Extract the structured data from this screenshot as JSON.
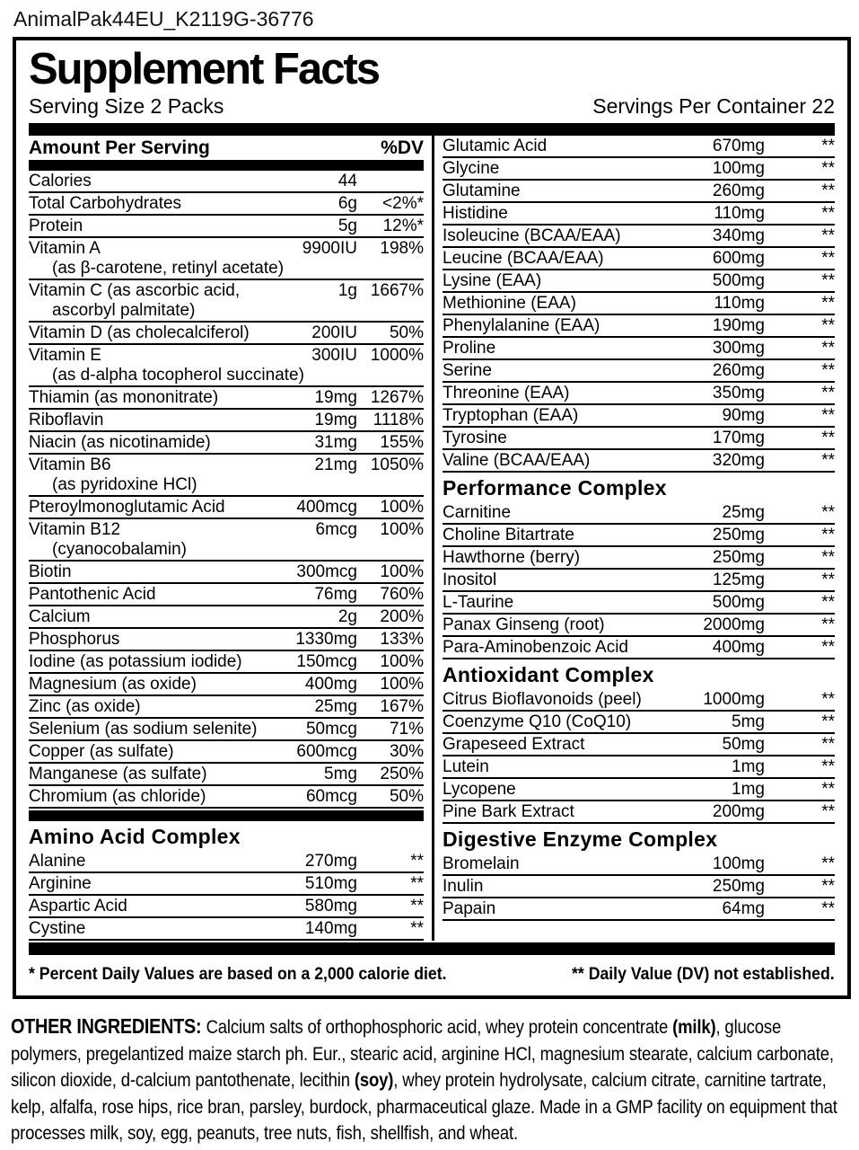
{
  "colors": {
    "ink": "#000000",
    "paper": "#ffffff"
  },
  "page": {
    "file_label": "AnimalPak44EU_K2119G-36776"
  },
  "supplement_panel": {
    "title": "Supplement Facts",
    "serving_size": "Serving Size 2 Packs",
    "servings_per_container": "Servings Per Container 22",
    "columns": {
      "left": {
        "header_amount": "Amount Per Serving",
        "header_dv": "%DV",
        "rows": [
          {
            "name": "Calories",
            "amount": "44",
            "dv": ""
          },
          {
            "name": "Total Carbohydrates",
            "amount": "6g",
            "dv": "<2%*"
          },
          {
            "name": "Protein",
            "amount": "5g",
            "dv": "12%*"
          },
          {
            "name": "Vitamin A",
            "sub": "(as β-carotene, retinyl acetate)",
            "amount": "9900IU",
            "dv": "198%"
          },
          {
            "name": "Vitamin C (as ascorbic acid,",
            "sub": "ascorbyl palmitate)",
            "amount": "1g",
            "dv": "1667%"
          },
          {
            "name": "Vitamin D (as cholecalciferol)",
            "amount": "200IU",
            "dv": "50%"
          },
          {
            "name": "Vitamin E",
            "sub": "(as d-alpha tocopherol succinate)",
            "amount": "300IU",
            "dv": "1000%"
          },
          {
            "name": "Thiamin (as mononitrate)",
            "amount": "19mg",
            "dv": "1267%"
          },
          {
            "name": "Riboflavin",
            "amount": "19mg",
            "dv": "1118%"
          },
          {
            "name": "Niacin (as nicotinamide)",
            "amount": "31mg",
            "dv": "155%"
          },
          {
            "name": "Vitamin B6",
            "sub": "(as pyridoxine HCl)",
            "amount": "21mg",
            "dv": "1050%"
          },
          {
            "name": "Pteroylmonoglutamic Acid",
            "amount": "400mcg",
            "dv": "100%"
          },
          {
            "name": "Vitamin B12",
            "sub": "(cyanocobalamin)",
            "amount": "6mcg",
            "dv": "100%"
          },
          {
            "name": "Biotin",
            "amount": "300mcg",
            "dv": "100%"
          },
          {
            "name": "Pantothenic Acid",
            "amount": "76mg",
            "dv": "760%"
          },
          {
            "name": "Calcium",
            "amount": "2g",
            "dv": "200%"
          },
          {
            "name": "Phosphorus",
            "amount": "1330mg",
            "dv": "133%"
          },
          {
            "name": "Iodine (as potassium iodide)",
            "amount": "150mcg",
            "dv": "100%"
          },
          {
            "name": "Magnesium (as oxide)",
            "amount": "400mg",
            "dv": "100%"
          },
          {
            "name": "Zinc (as oxide)",
            "amount": "25mg",
            "dv": "167%"
          },
          {
            "name": "Selenium (as sodium selenite)",
            "amount": "50mcg",
            "dv": "71%"
          },
          {
            "name": "Copper (as sulfate)",
            "amount": "600mcg",
            "dv": "30%"
          },
          {
            "name": "Manganese (as sulfate)",
            "amount": "5mg",
            "dv": "250%"
          },
          {
            "name": "Chromium (as chloride)",
            "amount": "60mcg",
            "dv": "50%"
          }
        ],
        "amino_section": {
          "header": "Amino Acid Complex",
          "rows": [
            {
              "name": "Alanine",
              "amount": "270mg",
              "dv": "**"
            },
            {
              "name": "Arginine",
              "amount": "510mg",
              "dv": "**"
            },
            {
              "name": "Aspartic Acid",
              "amount": "580mg",
              "dv": "**"
            },
            {
              "name": "Cystine",
              "amount": "140mg",
              "dv": "**"
            }
          ]
        }
      },
      "right": {
        "amino_rows": [
          {
            "name": "Glutamic Acid",
            "amount": "670mg",
            "dv": "**"
          },
          {
            "name": "Glycine",
            "amount": "100mg",
            "dv": "**"
          },
          {
            "name": "Glutamine",
            "amount": "260mg",
            "dv": "**"
          },
          {
            "name": "Histidine",
            "amount": "110mg",
            "dv": "**"
          },
          {
            "name": "Isoleucine (BCAA/EAA)",
            "amount": "340mg",
            "dv": "**"
          },
          {
            "name": "Leucine (BCAA/EAA)",
            "amount": "600mg",
            "dv": "**"
          },
          {
            "name": "Lysine (EAA)",
            "amount": "500mg",
            "dv": "**"
          },
          {
            "name": "Methionine (EAA)",
            "amount": "110mg",
            "dv": "**"
          },
          {
            "name": "Phenylalanine (EAA)",
            "amount": "190mg",
            "dv": "**"
          },
          {
            "name": "Proline",
            "amount": "300mg",
            "dv": "**"
          },
          {
            "name": "Serine",
            "amount": "260mg",
            "dv": "**"
          },
          {
            "name": "Threonine (EAA)",
            "amount": "350mg",
            "dv": "**"
          },
          {
            "name": "Tryptophan (EAA)",
            "amount": "90mg",
            "dv": "**"
          },
          {
            "name": "Tyrosine",
            "amount": "170mg",
            "dv": "**"
          },
          {
            "name": "Valine (BCAA/EAA)",
            "amount": "320mg",
            "dv": "**"
          }
        ],
        "sections": [
          {
            "header": "Performance Complex",
            "rows": [
              {
                "name": "Carnitine",
                "amount": "25mg",
                "dv": "**"
              },
              {
                "name": "Choline Bitartrate",
                "amount": "250mg",
                "dv": "**"
              },
              {
                "name": "Hawthorne (berry)",
                "amount": "250mg",
                "dv": "**"
              },
              {
                "name": "Inositol",
                "amount": "125mg",
                "dv": "**"
              },
              {
                "name": "L-Taurine",
                "amount": "500mg",
                "dv": "**"
              },
              {
                "name": "Panax Ginseng (root)",
                "amount": "2000mg",
                "dv": "**"
              },
              {
                "name": "Para-Aminobenzoic Acid",
                "amount": "400mg",
                "dv": "**"
              }
            ]
          },
          {
            "header": "Antioxidant Complex",
            "rows": [
              {
                "name": "Citrus Bioflavonoids (peel)",
                "amount": "1000mg",
                "dv": "**"
              },
              {
                "name": "Coenzyme Q10 (CoQ10)",
                "amount": "5mg",
                "dv": "**"
              },
              {
                "name": "Grapeseed Extract",
                "amount": "50mg",
                "dv": "**"
              },
              {
                "name": "Lutein",
                "amount": "1mg",
                "dv": "**"
              },
              {
                "name": "Lycopene",
                "amount": "1mg",
                "dv": "**"
              },
              {
                "name": "Pine Bark Extract",
                "amount": "200mg",
                "dv": "**"
              }
            ]
          },
          {
            "header": "Digestive Enzyme Complex",
            "rows": [
              {
                "name": "Bromelain",
                "amount": "100mg",
                "dv": "**"
              },
              {
                "name": "Inulin",
                "amount": "250mg",
                "dv": "**"
              },
              {
                "name": "Papain",
                "amount": "64mg",
                "dv": "**"
              }
            ]
          }
        ]
      }
    },
    "footnotes": {
      "daily_values": "* Percent Daily Values are based on a 2,000 calorie diet.",
      "not_established": "** Daily Value (DV) not established."
    }
  },
  "other_ingredients": {
    "segments": [
      {
        "text": "OTHER INGREDIENTS: ",
        "bold": true,
        "lead": true
      },
      {
        "text": "Calcium salts of orthophosphoric acid, whey protein concentrate ",
        "bold": false
      },
      {
        "text": "(milk)",
        "bold": true
      },
      {
        "text": ", glucose polymers, pregelantized maize starch ph. Eur., stearic acid, arginine HCl, magnesium stearate, calcium carbonate, silicon dioxide, d-calcium pantothenate, lecithin ",
        "bold": false
      },
      {
        "text": "(soy)",
        "bold": true
      },
      {
        "text": ", whey protein hydrolysate, calcium citrate, carnitine tartrate, kelp, alfalfa, rose hips, rice bran, parsley, burdock, pharmaceutical glaze. Made in a GMP facility on equipment that processes milk, soy, egg, peanuts, tree nuts, fish, shellfish, and wheat.",
        "bold": false
      }
    ]
  }
}
